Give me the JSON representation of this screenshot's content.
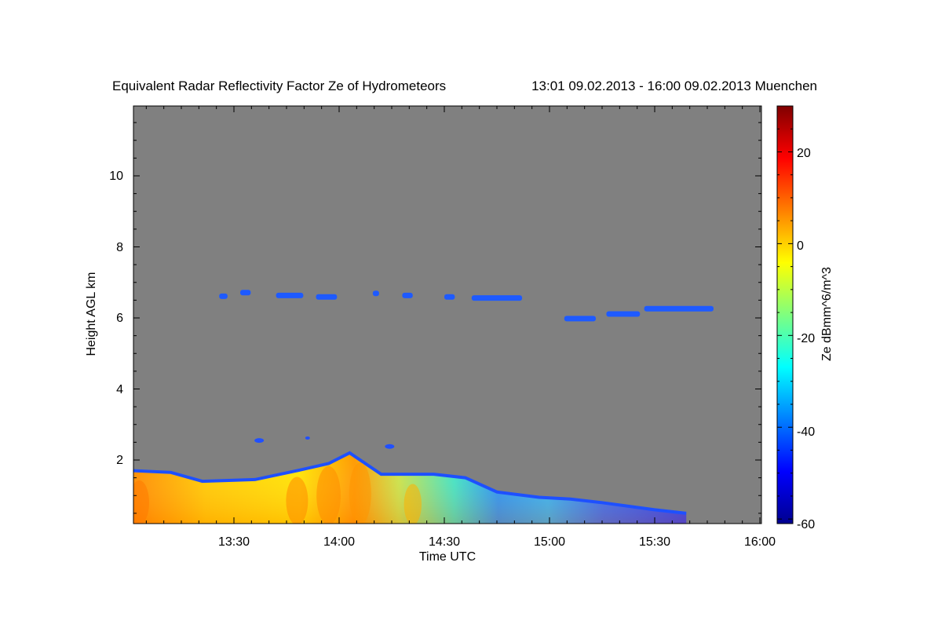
{
  "chart_data": {
    "type": "heatmap",
    "title": "Equivalent Radar Reflectivity Factor Ze of Hydrometeors",
    "subtitle": "13:01 09.02.2013 - 16:00 09.02.2013 Muenchen",
    "xlabel": "Time UTC",
    "ylabel": "Height AGL km",
    "colorbar_label": "Ze dBmm^6/m^3",
    "xlim": [
      "13:01",
      "16:00"
    ],
    "ylim": [
      0.15,
      11.9
    ],
    "x_ticks": [
      "13:30",
      "14:00",
      "14:30",
      "15:00",
      "15:30",
      "16:00"
    ],
    "y_ticks": [
      "2",
      "4",
      "6",
      "8",
      "10"
    ],
    "colorbar_range": [
      -61,
      30
    ],
    "colorbar_ticks": [
      "20",
      "0",
      "-20",
      "-40",
      "-60"
    ],
    "colormap": "jet",
    "background_color": "#808080",
    "features": [
      {
        "description": "boundary-layer precipitation echo",
        "top_km": [
          [
            13.0,
            1.7
          ],
          [
            13.2,
            1.65
          ],
          [
            13.35,
            1.4
          ],
          [
            13.6,
            1.45
          ],
          [
            13.8,
            1.7
          ],
          [
            13.95,
            1.9
          ],
          [
            14.05,
            2.2
          ],
          [
            14.2,
            1.6
          ],
          [
            14.45,
            1.6
          ],
          [
            14.6,
            1.5
          ],
          [
            14.75,
            1.1
          ],
          [
            14.95,
            0.95
          ],
          [
            15.1,
            0.9
          ],
          [
            15.25,
            0.8
          ],
          [
            15.5,
            0.6
          ],
          [
            15.65,
            0.5
          ]
        ],
        "ze_dbz_left_to_right": [
          5,
          -5,
          2,
          -10,
          -25,
          -40
        ]
      },
      {
        "description": "upper-level ice cloud",
        "height_km": [
          6.0,
          6.7
        ],
        "ze_dbz": -45
      }
    ]
  }
}
